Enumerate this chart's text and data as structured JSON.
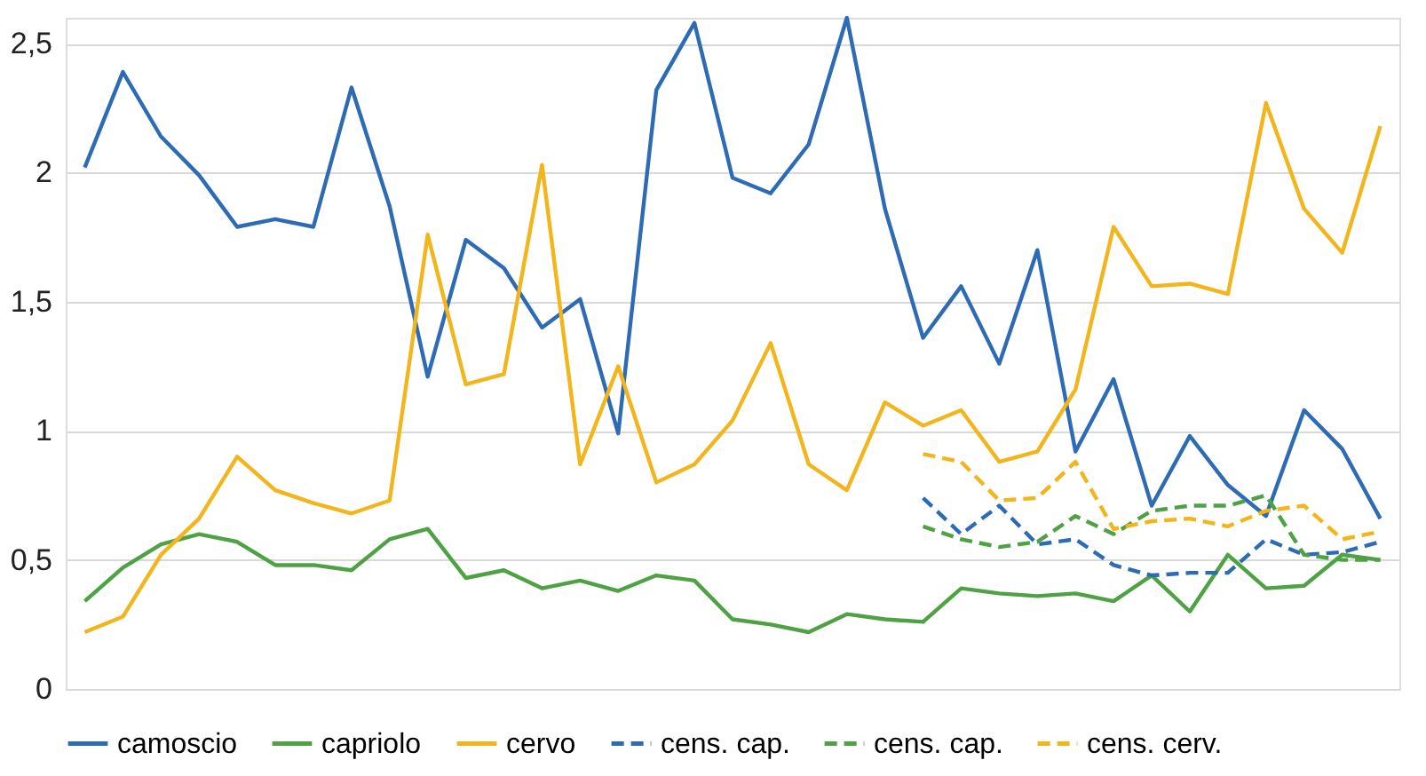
{
  "chart_data": {
    "type": "line",
    "categories": [
      null,
      null,
      null,
      null,
      null,
      null,
      null,
      null,
      null,
      null,
      null,
      null,
      null,
      null,
      null,
      null,
      null,
      null,
      null,
      null,
      null,
      null,
      null,
      null,
      null,
      null,
      null,
      null,
      null,
      null,
      null,
      null,
      null,
      null,
      null
    ],
    "series": [
      {
        "name": "camoscio",
        "color": "#2e6bb5",
        "line_style": "solid",
        "values": [
          2.02,
          2.39,
          2.14,
          1.99,
          1.79,
          1.82,
          1.79,
          2.33,
          1.87,
          1.21,
          1.74,
          1.63,
          1.4,
          1.51,
          0.99,
          2.32,
          2.58,
          1.98,
          1.92,
          2.11,
          2.6,
          1.86,
          1.36,
          1.56,
          1.26,
          1.7,
          0.92,
          1.2,
          0.71,
          0.98,
          0.79,
          0.67,
          1.08,
          0.93,
          0.66
        ]
      },
      {
        "name": "capriolo",
        "color": "#4ea244",
        "line_style": "solid",
        "values": [
          0.34,
          0.47,
          0.56,
          0.6,
          0.57,
          0.48,
          0.48,
          0.46,
          0.58,
          0.62,
          0.43,
          0.46,
          0.39,
          0.42,
          0.38,
          0.44,
          0.42,
          0.27,
          0.25,
          0.22,
          0.29,
          0.27,
          0.26,
          0.39,
          0.37,
          0.36,
          0.37,
          0.34,
          0.44,
          0.3,
          0.52,
          0.39,
          0.4,
          0.52,
          0.5
        ]
      },
      {
        "name": "cervo",
        "color": "#f2b51c",
        "line_style": "solid",
        "values": [
          0.22,
          0.28,
          0.52,
          0.66,
          0.9,
          0.77,
          0.72,
          0.68,
          0.73,
          1.76,
          1.18,
          1.22,
          2.03,
          0.87,
          1.25,
          0.8,
          0.87,
          1.04,
          1.34,
          0.87,
          0.77,
          1.11,
          1.02,
          1.08,
          0.88,
          0.92,
          1.16,
          1.79,
          1.56,
          1.57,
          1.53,
          2.27,
          1.86,
          1.69,
          2.18
        ]
      },
      {
        "name": "cens. cap.",
        "color": "#2e6bb5",
        "line_style": "dashed",
        "values": [
          null,
          null,
          null,
          null,
          null,
          null,
          null,
          null,
          null,
          null,
          null,
          null,
          null,
          null,
          null,
          null,
          null,
          null,
          null,
          null,
          null,
          null,
          0.74,
          0.6,
          0.71,
          0.56,
          0.58,
          0.48,
          0.44,
          0.45,
          0.45,
          0.58,
          0.52,
          0.53,
          0.57
        ]
      },
      {
        "name": "cens. cap.",
        "color": "#4ea244",
        "line_style": "dashed",
        "values": [
          null,
          null,
          null,
          null,
          null,
          null,
          null,
          null,
          null,
          null,
          null,
          null,
          null,
          null,
          null,
          null,
          null,
          null,
          null,
          null,
          null,
          null,
          0.63,
          0.58,
          0.55,
          0.57,
          0.67,
          0.6,
          0.69,
          0.71,
          0.71,
          0.75,
          0.52,
          0.5,
          0.5
        ]
      },
      {
        "name": "cens. cerv.",
        "color": "#f2b51c",
        "line_style": "dashed",
        "values": [
          null,
          null,
          null,
          null,
          null,
          null,
          null,
          null,
          null,
          null,
          null,
          null,
          null,
          null,
          null,
          null,
          null,
          null,
          null,
          null,
          null,
          null,
          0.91,
          0.88,
          0.73,
          0.74,
          0.88,
          0.62,
          0.65,
          0.66,
          0.63,
          0.69,
          0.71,
          0.58,
          0.61
        ]
      }
    ],
    "ylim": [
      0,
      2.6
    ],
    "yticks": [
      0,
      {
        "value": 0.5,
        "label": "0,5"
      },
      1,
      {
        "value": 1.5,
        "label": "1,5"
      },
      2,
      {
        "value": 2.5,
        "label": "2,5"
      }
    ],
    "grid": "y",
    "legend": "bottom",
    "marker": "none",
    "tick_labels": "y"
  }
}
